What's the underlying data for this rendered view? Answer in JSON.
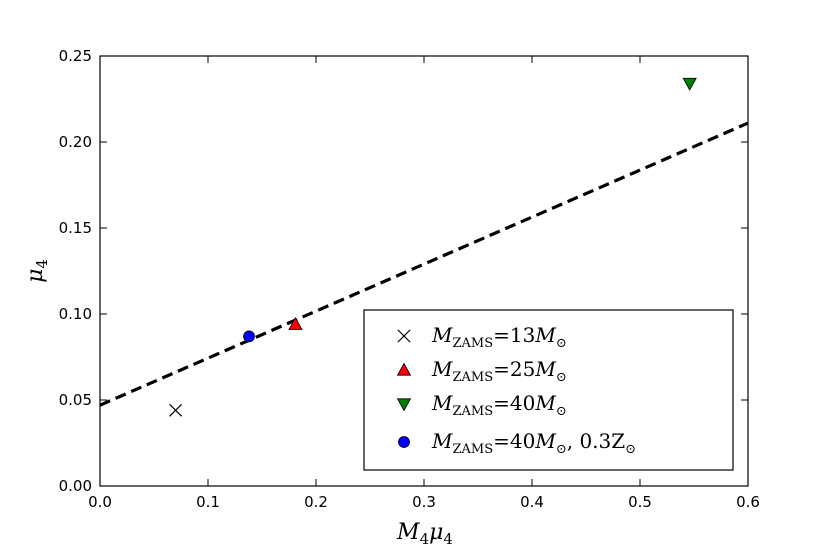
{
  "chart_data": {
    "type": "scatter",
    "xlim": [
      0.0,
      0.6
    ],
    "ylim": [
      0.0,
      0.25
    ],
    "xticks": [
      "0.0",
      "0.1",
      "0.2",
      "0.3",
      "0.4",
      "0.5",
      "0.6"
    ],
    "yticks": [
      "0.00",
      "0.05",
      "0.10",
      "0.15",
      "0.20",
      "0.25"
    ],
    "xlabel": {
      "main": "M",
      "sub": "4",
      "main2": "μ",
      "sub2": "4"
    },
    "ylabel": {
      "main": "μ",
      "sub": "4"
    },
    "grid": false,
    "legend_position": "lower-right",
    "series": [
      {
        "marker": "x",
        "color": "#000000",
        "x": [
          0.07
        ],
        "y": [
          0.044
        ],
        "label": {
          "m": "M",
          "sub": "ZAMS",
          "eq": "=13",
          "m2": "M",
          "sun": "⊙",
          "extra": ""
        }
      },
      {
        "marker": "triangle-up",
        "color": "#ff0000",
        "x": [
          0.181
        ],
        "y": [
          0.094
        ],
        "label": {
          "m": "M",
          "sub": "ZAMS",
          "eq": "=25",
          "m2": "M",
          "sun": "⊙",
          "extra": ""
        }
      },
      {
        "marker": "triangle-down",
        "color": "#008000",
        "x": [
          0.546
        ],
        "y": [
          0.234
        ],
        "label": {
          "m": "M",
          "sub": "ZAMS",
          "eq": "=40",
          "m2": "M",
          "sun": "⊙",
          "extra": ""
        }
      },
      {
        "marker": "circle",
        "color": "#0000ff",
        "x": [
          0.138
        ],
        "y": [
          0.087
        ],
        "label": {
          "m": "M",
          "sub": "ZAMS",
          "eq": "=40",
          "m2": "M",
          "sun": "⊙",
          "extra": ", 0.3Z"
        }
      }
    ],
    "fit_line": {
      "style": "dashed",
      "color": "#000000",
      "x": [
        0.0,
        0.6
      ],
      "y": [
        0.047,
        0.211
      ]
    }
  }
}
